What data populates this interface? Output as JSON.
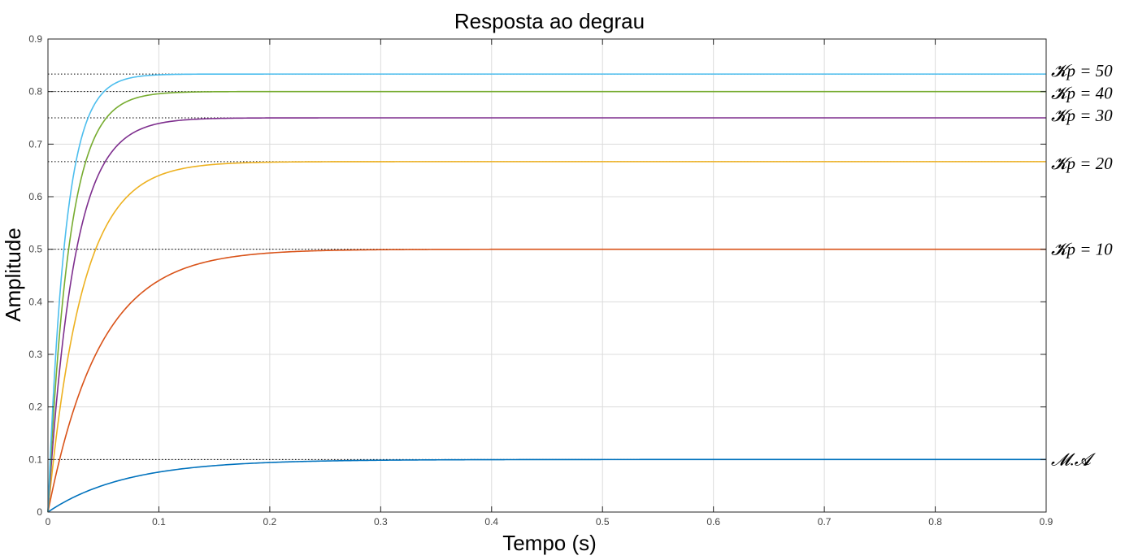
{
  "chart_data": {
    "type": "line",
    "title": "Resposta ao degrau",
    "xlabel": "Tempo (s)",
    "ylabel": "Amplitude",
    "xlim": [
      0,
      0.9
    ],
    "ylim": [
      0,
      0.9
    ],
    "xticks": [
      "0",
      "0.1",
      "0.2",
      "0.3",
      "0.4",
      "0.5",
      "0.6",
      "0.7",
      "0.8",
      "0.9"
    ],
    "yticks": [
      "0",
      "0.1",
      "0.2",
      "0.3",
      "0.4",
      "0.5",
      "0.6",
      "0.7",
      "0.8",
      "0.9"
    ],
    "grid": true,
    "series": [
      {
        "name": "𝓜.𝓐",
        "color": "#0072BD",
        "final_value": 0.1,
        "time_constant": 0.07
      },
      {
        "name": "𝓚p = 10",
        "color": "#D95319",
        "final_value": 0.5,
        "time_constant": 0.047
      },
      {
        "name": "𝓚p = 20",
        "color": "#EDB120",
        "final_value": 0.6667,
        "time_constant": 0.031
      },
      {
        "name": "𝓚p = 30",
        "color": "#7E2F8E",
        "final_value": 0.75,
        "time_constant": 0.0235
      },
      {
        "name": "𝓚p = 40",
        "color": "#77AC30",
        "final_value": 0.8,
        "time_constant": 0.019
      },
      {
        "name": "𝓚p = 50",
        "color": "#4DBEEE",
        "final_value": 0.8333,
        "time_constant": 0.0157
      }
    ]
  }
}
